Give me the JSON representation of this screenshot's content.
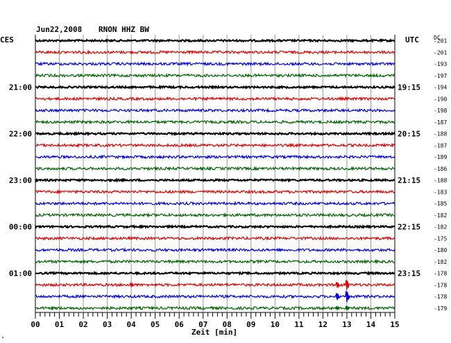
{
  "header": {
    "date": "Jun22,2008",
    "station": "RNON HHZ BW",
    "left_tz": "CES",
    "right_tz": "UTC",
    "dc_label": "DC"
  },
  "chart_data": {
    "type": "line",
    "xlabel": "Zeit [min]",
    "x_ticks": [
      "00",
      "01",
      "02",
      "03",
      "04",
      "05",
      "06",
      "07",
      "08",
      "09",
      "10",
      "11",
      "12",
      "13",
      "14",
      "15"
    ],
    "xlim": [
      0,
      15
    ],
    "grid": true,
    "left_hour_labels": [
      "21:00",
      "22:00",
      "23:00",
      "00:00",
      "01:00"
    ],
    "right_hour_labels": [
      "19:15",
      "20:15",
      "21:15",
      "22:15",
      "23:15"
    ],
    "trace_colors": [
      "#000000",
      "#e00000",
      "#0000e0",
      "#006400"
    ],
    "dc_offsets": [
      "-201",
      "-201",
      "-193",
      "-197",
      "-194",
      "-190",
      "-198",
      "-187",
      "-188",
      "-187",
      "-189",
      "-186",
      "-188",
      "-183",
      "-185",
      "-182",
      "-182",
      "-175",
      "-180",
      "-182",
      "-178",
      "-178",
      "-178",
      "-179"
    ],
    "events": [
      {
        "trace": 21,
        "minute": 4.0,
        "amplitude": 2
      },
      {
        "trace": 21,
        "minute": 12.6,
        "amplitude": 4
      },
      {
        "trace": 21,
        "minute": 13.0,
        "amplitude": 7
      },
      {
        "trace": 22,
        "minute": 12.6,
        "amplitude": 5
      },
      {
        "trace": 22,
        "minute": 13.0,
        "amplitude": 8
      },
      {
        "trace": 23,
        "minute": 12.6,
        "amplitude": 2
      },
      {
        "trace": 23,
        "minute": 13.0,
        "amplitude": 3
      }
    ]
  }
}
